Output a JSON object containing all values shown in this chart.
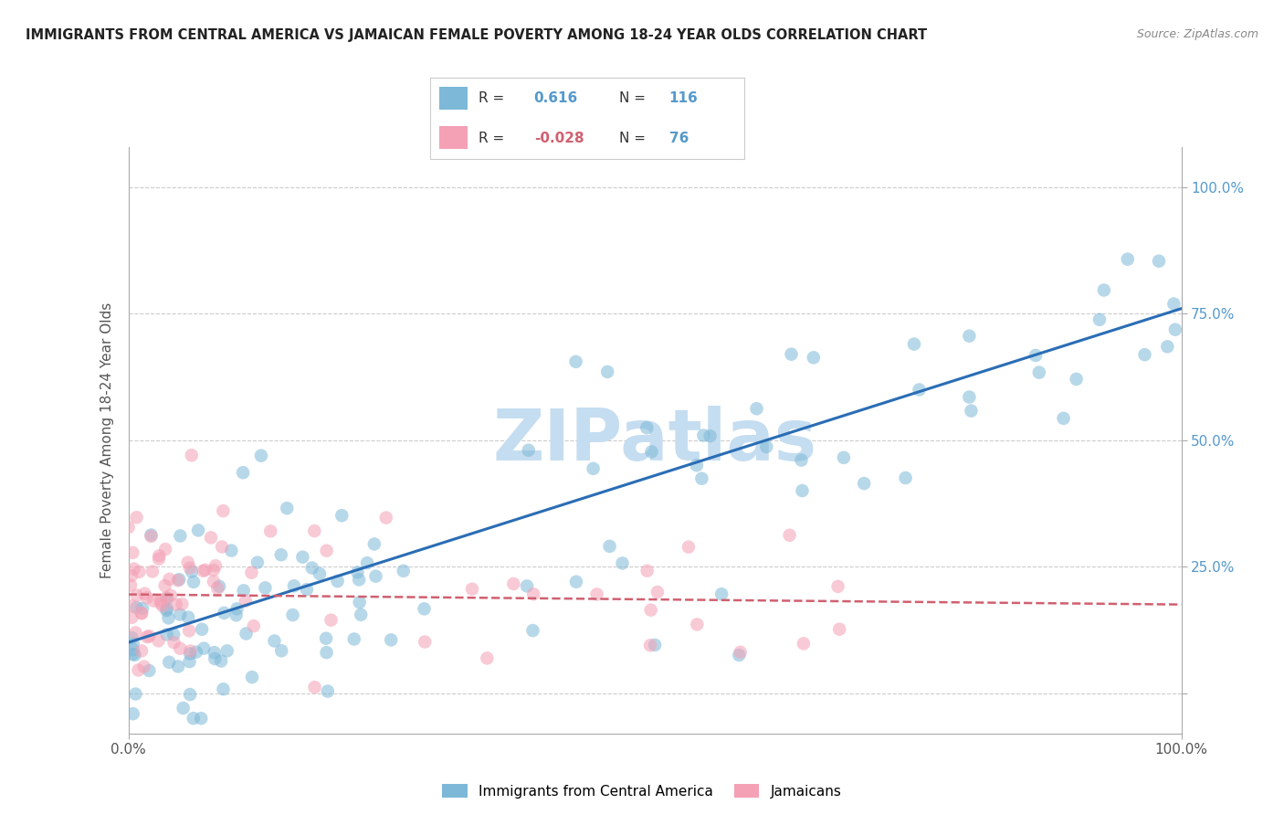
{
  "title": "IMMIGRANTS FROM CENTRAL AMERICA VS JAMAICAN FEMALE POVERTY AMONG 18-24 YEAR OLDS CORRELATION CHART",
  "source": "Source: ZipAtlas.com",
  "ylabel": "Female Poverty Among 18-24 Year Olds",
  "xlim": [
    0,
    1
  ],
  "ylim": [
    -0.08,
    1.08
  ],
  "yticks": [
    0.0,
    0.25,
    0.5,
    0.75,
    1.0
  ],
  "ytick_labels": [
    "",
    "25.0%",
    "50.0%",
    "75.0%",
    "100.0%"
  ],
  "xtick_labels": [
    "0.0%",
    "100.0%"
  ],
  "legend_blue_label": "Immigrants from Central America",
  "legend_pink_label": "Jamaicans",
  "R_blue": "0.616",
  "N_blue": "116",
  "R_pink": "-0.028",
  "N_pink": "76",
  "blue_color": "#7db8d8",
  "pink_color": "#f4a0b5",
  "trend_blue_color": "#2a6db5",
  "trend_pink_color": "#d06070",
  "watermark": "ZIPatlas",
  "watermark_color": "#c5ddf0",
  "blue_trend_x0": 0.0,
  "blue_trend_y0": 0.1,
  "blue_trend_x1": 1.0,
  "blue_trend_y1": 0.76,
  "pink_trend_x0": 0.0,
  "pink_trend_y0": 0.195,
  "pink_trend_x1": 1.0,
  "pink_trend_y1": 0.175
}
